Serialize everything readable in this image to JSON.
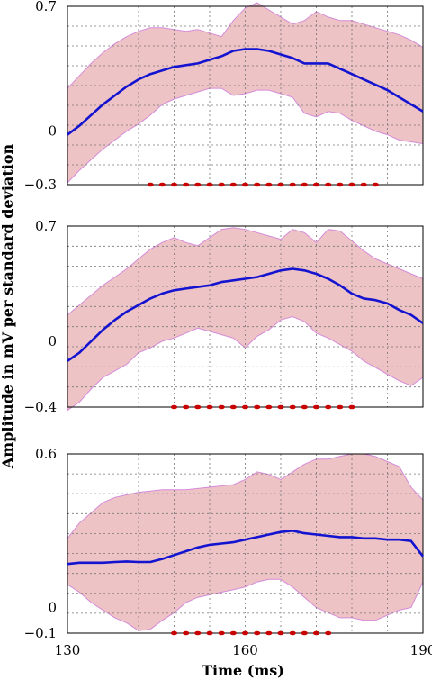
{
  "chart_data": {
    "type": "line",
    "x_axis": {
      "label": "Time (ms)",
      "range": [
        130,
        190
      ],
      "ticks": [
        "130",
        "160",
        "190"
      ],
      "grid_step_ms": 6
    },
    "y_axis_label": "Amplitude in mV per standard deviation",
    "panels": [
      {
        "ylim": [
          -0.3,
          0.7
        ],
        "y_ticks": [
          {
            "value": 0.7,
            "text": "0.7"
          },
          {
            "value": 0,
            "text": "0"
          },
          {
            "value": -0.3,
            "text": "−0.3"
          }
        ],
        "x": [
          130,
          132,
          134,
          136,
          138,
          140,
          142,
          144,
          146,
          148,
          150,
          152,
          154,
          156,
          158,
          160,
          162,
          164,
          166,
          168,
          170,
          172,
          174,
          176,
          178,
          180,
          182,
          184,
          186,
          188,
          190
        ],
        "mean": [
          -0.02,
          0.03,
          0.09,
          0.15,
          0.2,
          0.25,
          0.29,
          0.32,
          0.34,
          0.36,
          0.37,
          0.38,
          0.4,
          0.42,
          0.45,
          0.46,
          0.46,
          0.45,
          0.43,
          0.41,
          0.38,
          0.38,
          0.38,
          0.35,
          0.32,
          0.29,
          0.26,
          0.23,
          0.19,
          0.15,
          0.11
        ],
        "upper": [
          0.24,
          0.31,
          0.38,
          0.44,
          0.49,
          0.53,
          0.56,
          0.58,
          0.58,
          0.57,
          0.56,
          0.57,
          0.55,
          0.53,
          0.62,
          0.69,
          0.72,
          0.68,
          0.64,
          0.6,
          0.62,
          0.67,
          0.64,
          0.62,
          0.62,
          0.6,
          0.58,
          0.56,
          0.54,
          0.51,
          0.47
        ],
        "lower": [
          -0.29,
          -0.22,
          -0.16,
          -0.1,
          -0.05,
          0.0,
          0.04,
          0.09,
          0.15,
          0.18,
          0.2,
          0.22,
          0.24,
          0.24,
          0.2,
          0.21,
          0.23,
          0.23,
          0.21,
          0.19,
          0.1,
          0.08,
          0.11,
          0.1,
          0.06,
          0.03,
          0.0,
          -0.02,
          -0.05,
          -0.06,
          -0.07
        ],
        "marker_x": [
          144,
          146,
          148,
          150,
          152,
          154,
          156,
          158,
          160,
          162,
          164,
          166,
          168,
          170,
          172,
          174,
          176,
          178,
          180,
          182
        ]
      },
      {
        "ylim": [
          -0.4,
          0.7
        ],
        "y_ticks": [
          {
            "value": 0.7,
            "text": "0.7"
          },
          {
            "value": 0,
            "text": "0"
          },
          {
            "value": -0.4,
            "text": "−0.4"
          }
        ],
        "x": [
          130,
          132,
          134,
          136,
          138,
          140,
          142,
          144,
          146,
          148,
          150,
          152,
          154,
          156,
          158,
          160,
          162,
          164,
          166,
          168,
          170,
          172,
          174,
          176,
          178,
          180,
          182,
          184,
          186,
          188,
          190
        ],
        "mean": [
          -0.12,
          -0.07,
          0.0,
          0.07,
          0.13,
          0.18,
          0.22,
          0.26,
          0.29,
          0.31,
          0.32,
          0.33,
          0.34,
          0.36,
          0.37,
          0.38,
          0.39,
          0.41,
          0.43,
          0.44,
          0.43,
          0.41,
          0.38,
          0.34,
          0.29,
          0.26,
          0.25,
          0.23,
          0.19,
          0.16,
          0.11
        ],
        "upper": [
          0.16,
          0.22,
          0.28,
          0.34,
          0.39,
          0.44,
          0.5,
          0.56,
          0.6,
          0.63,
          0.6,
          0.58,
          0.63,
          0.68,
          0.69,
          0.68,
          0.66,
          0.64,
          0.62,
          0.68,
          0.66,
          0.6,
          0.68,
          0.67,
          0.61,
          0.55,
          0.5,
          0.47,
          0.44,
          0.41,
          0.38
        ],
        "lower": [
          -0.42,
          -0.37,
          -0.29,
          -0.22,
          -0.18,
          -0.14,
          -0.07,
          -0.04,
          0.0,
          0.02,
          0.05,
          0.08,
          0.06,
          0.04,
          0.02,
          -0.04,
          0.03,
          0.07,
          0.13,
          0.15,
          0.12,
          0.05,
          0.02,
          -0.02,
          -0.06,
          -0.12,
          -0.16,
          -0.2,
          -0.24,
          -0.27,
          -0.22
        ],
        "marker_x": [
          148,
          150,
          152,
          154,
          156,
          158,
          160,
          162,
          164,
          166,
          168,
          170,
          172,
          174,
          176,
          178
        ]
      },
      {
        "ylim": [
          -0.1,
          0.6
        ],
        "y_ticks": [
          {
            "value": 0.6,
            "text": "0.6"
          },
          {
            "value": 0,
            "text": "0"
          },
          {
            "value": -0.1,
            "text": "−0.1"
          }
        ],
        "x": [
          130,
          132,
          134,
          136,
          138,
          140,
          142,
          144,
          146,
          148,
          150,
          152,
          154,
          156,
          158,
          160,
          162,
          164,
          166,
          168,
          170,
          172,
          174,
          176,
          178,
          180,
          182,
          184,
          186,
          188,
          190
        ],
        "mean": [
          0.17,
          0.175,
          0.175,
          0.175,
          0.178,
          0.18,
          0.178,
          0.178,
          0.19,
          0.205,
          0.22,
          0.235,
          0.245,
          0.25,
          0.255,
          0.265,
          0.275,
          0.285,
          0.295,
          0.3,
          0.29,
          0.285,
          0.28,
          0.275,
          0.275,
          0.27,
          0.27,
          0.265,
          0.265,
          0.26,
          0.2
        ],
        "upper": [
          0.27,
          0.33,
          0.37,
          0.41,
          0.43,
          0.44,
          0.45,
          0.455,
          0.46,
          0.46,
          0.46,
          0.465,
          0.47,
          0.475,
          0.48,
          0.5,
          0.53,
          0.52,
          0.5,
          0.53,
          0.56,
          0.58,
          0.58,
          0.59,
          0.6,
          0.6,
          0.59,
          0.57,
          0.55,
          0.47,
          0.42
        ],
        "lower": [
          0.09,
          0.06,
          0.02,
          -0.01,
          -0.04,
          -0.06,
          -0.09,
          -0.085,
          -0.05,
          -0.02,
          0.02,
          0.04,
          0.05,
          0.06,
          0.07,
          0.08,
          0.1,
          0.11,
          0.11,
          0.08,
          0.04,
          0.0,
          -0.02,
          -0.04,
          -0.04,
          -0.05,
          -0.05,
          -0.03,
          -0.01,
          0.0,
          0.1
        ],
        "marker_x": [
          148,
          150,
          152,
          154,
          156,
          158,
          160,
          162,
          164,
          166,
          168,
          170,
          172,
          174
        ]
      }
    ]
  }
}
